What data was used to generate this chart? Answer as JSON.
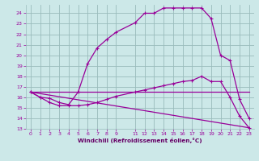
{
  "bg_color": "#cce8e8",
  "line_color": "#990099",
  "grid_color": "#99bbbb",
  "xlabel": "Windchill (Refroidissement éolien,°C)",
  "xlabel_color": "#660066",
  "ylim": [
    13,
    24.8
  ],
  "xlim": [
    -0.5,
    23.5
  ],
  "ytick_vals": [
    13,
    14,
    15,
    16,
    17,
    18,
    19,
    20,
    21,
    22,
    23,
    24
  ],
  "xtick_vals": [
    0,
    1,
    2,
    3,
    4,
    5,
    6,
    7,
    8,
    9,
    11,
    12,
    13,
    14,
    15,
    16,
    17,
    18,
    19,
    20,
    21,
    22,
    23
  ],
  "curve1_x": [
    0,
    1,
    2,
    3,
    4,
    5,
    6,
    7,
    8,
    9,
    11,
    12,
    13,
    14,
    15,
    16,
    17,
    18,
    19,
    20,
    21,
    22,
    23
  ],
  "curve1_y": [
    16.5,
    16.0,
    15.9,
    15.5,
    15.3,
    16.5,
    19.2,
    20.7,
    21.5,
    22.2,
    23.1,
    24.0,
    24.0,
    24.5,
    24.5,
    24.5,
    24.5,
    24.5,
    23.5,
    20.0,
    19.5,
    15.8,
    14.0
  ],
  "curve2_x": [
    0,
    1,
    2,
    3,
    4,
    5,
    6,
    7,
    8,
    9,
    11,
    12,
    13,
    14,
    15,
    16,
    17,
    18,
    19,
    20,
    21,
    22,
    23
  ],
  "curve2_y": [
    16.5,
    16.0,
    15.5,
    15.2,
    15.2,
    15.2,
    15.3,
    15.5,
    15.8,
    16.1,
    16.5,
    16.7,
    16.9,
    17.1,
    17.3,
    17.5,
    17.6,
    18.0,
    17.5,
    17.5,
    16.0,
    14.2,
    13.1
  ],
  "line3_x": [
    0,
    23
  ],
  "line3_y": [
    16.5,
    16.5
  ],
  "line4_x": [
    0,
    23
  ],
  "line4_y": [
    16.5,
    13.1
  ]
}
